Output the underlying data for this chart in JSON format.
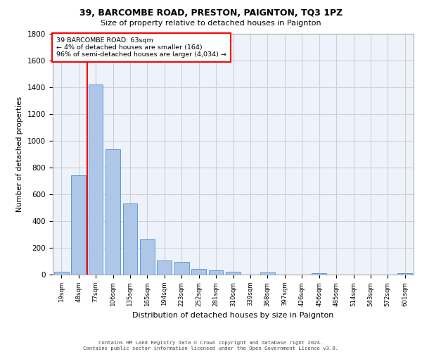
{
  "title1": "39, BARCOMBE ROAD, PRESTON, PAIGNTON, TQ3 1PZ",
  "title2": "Size of property relative to detached houses in Paignton",
  "xlabel": "Distribution of detached houses by size in Paignton",
  "ylabel": "Number of detached properties",
  "categories": [
    "19sqm",
    "48sqm",
    "77sqm",
    "106sqm",
    "135sqm",
    "165sqm",
    "194sqm",
    "223sqm",
    "252sqm",
    "281sqm",
    "310sqm",
    "339sqm",
    "368sqm",
    "397sqm",
    "426sqm",
    "456sqm",
    "485sqm",
    "514sqm",
    "543sqm",
    "572sqm",
    "601sqm"
  ],
  "values": [
    22,
    740,
    1420,
    935,
    530,
    265,
    105,
    92,
    42,
    30,
    20,
    0,
    15,
    0,
    0,
    10,
    0,
    0,
    0,
    0,
    13
  ],
  "bar_color": "#aec6e8",
  "bar_edge_color": "#5b9bd5",
  "grid_color": "#d0d0d0",
  "bg_color": "#eef3fb",
  "annotation_box_text": [
    "39 BARCOMBE ROAD: 63sqm",
    "← 4% of detached houses are smaller (164)",
    "96% of semi-detached houses are larger (4,034) →"
  ],
  "annotation_box_color": "white",
  "annotation_box_edge_color": "red",
  "marker_line_color": "red",
  "ylim": [
    0,
    1800
  ],
  "yticks": [
    0,
    200,
    400,
    600,
    800,
    1000,
    1200,
    1400,
    1600,
    1800
  ],
  "footer_line1": "Contains HM Land Registry data © Crown copyright and database right 2024.",
  "footer_line2": "Contains public sector information licensed under the Open Government Licence v3.0."
}
